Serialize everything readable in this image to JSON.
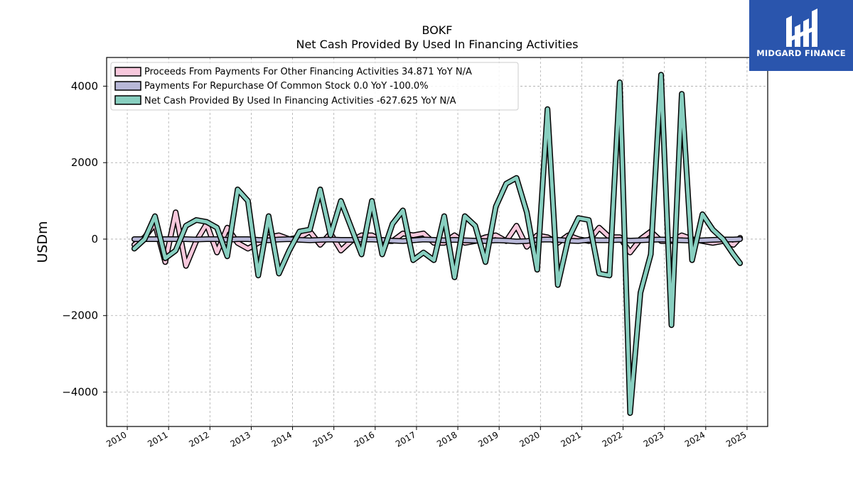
{
  "logo": {
    "text": "MIDGARD FINANCE",
    "bg": "#2a55ad"
  },
  "chart_data": {
    "type": "line",
    "title": "BOKF",
    "subtitle": "Net Cash Provided By Used In Financing Activities",
    "xlabel": "",
    "ylabel": "USDm",
    "xlim": [
      2009.5,
      2025.5
    ],
    "ylim": [
      -4900,
      4750
    ],
    "x_ticks": [
      "2010",
      "2011",
      "2012",
      "2013",
      "2014",
      "2015",
      "2016",
      "2017",
      "2018",
      "2019",
      "2020",
      "2021",
      "2022",
      "2023",
      "2024",
      "2025"
    ],
    "y_ticks": [
      -4000,
      -2000,
      0,
      2000,
      4000
    ],
    "y_tick_labels": [
      "−4000",
      "−2000",
      "0",
      "2000",
      "4000"
    ],
    "grid": true,
    "legend_position": "top-left",
    "series": [
      {
        "name": "Proceeds From Payments For Other Financing Activities  34.871 YoY N/A",
        "color": "#f7c8dc",
        "x": [
          2010.17,
          2010.42,
          2010.67,
          2010.92,
          2011.17,
          2011.42,
          2011.67,
          2011.92,
          2012.17,
          2012.42,
          2012.67,
          2012.92,
          2013.17,
          2013.42,
          2013.67,
          2013.92,
          2014.17,
          2014.42,
          2014.67,
          2014.92,
          2015.17,
          2015.42,
          2015.67,
          2015.92,
          2016.17,
          2016.42,
          2016.67,
          2016.92,
          2017.17,
          2017.42,
          2017.67,
          2017.92,
          2018.17,
          2018.42,
          2018.67,
          2018.92,
          2019.17,
          2019.42,
          2019.67,
          2019.92,
          2020.17,
          2020.42,
          2020.67,
          2020.92,
          2021.17,
          2021.42,
          2021.67,
          2021.92,
          2022.17,
          2022.42,
          2022.67,
          2022.92,
          2023.17,
          2023.42,
          2023.67,
          2023.92,
          2024.17,
          2024.42,
          2024.67,
          2024.83
        ],
        "y": [
          -150,
          50,
          400,
          -600,
          700,
          -700,
          -50,
          400,
          -350,
          300,
          -100,
          -250,
          -100,
          50,
          100,
          0,
          50,
          200,
          -150,
          150,
          -300,
          -50,
          100,
          100,
          -50,
          -50,
          150,
          100,
          150,
          -100,
          -100,
          100,
          -100,
          -50,
          50,
          100,
          -50,
          350,
          -200,
          100,
          50,
          -100,
          100,
          0,
          -50,
          300,
          50,
          50,
          -350,
          0,
          200,
          -50,
          -50,
          100,
          0,
          -50,
          -100,
          -50,
          -150,
          35
        ]
      },
      {
        "name": "Payments For Repurchase Of Common Stock  0.0 YoY -100.0%",
        "color": "#b8b8d8",
        "x": [
          2010.17,
          2010.42,
          2010.67,
          2010.92,
          2011.17,
          2011.42,
          2011.67,
          2011.92,
          2012.17,
          2012.42,
          2012.67,
          2012.92,
          2013.17,
          2013.42,
          2013.67,
          2013.92,
          2014.17,
          2014.42,
          2014.67,
          2014.92,
          2015.17,
          2015.42,
          2015.67,
          2015.92,
          2016.17,
          2016.42,
          2016.67,
          2016.92,
          2017.17,
          2017.42,
          2017.67,
          2017.92,
          2018.17,
          2018.42,
          2018.67,
          2018.92,
          2019.17,
          2019.42,
          2019.67,
          2019.92,
          2020.17,
          2020.42,
          2020.67,
          2020.92,
          2021.17,
          2021.42,
          2021.67,
          2021.92,
          2022.17,
          2022.42,
          2022.67,
          2022.92,
          2023.17,
          2023.42,
          2023.67,
          2023.92,
          2024.17,
          2024.42,
          2024.67,
          2024.83
        ],
        "y": [
          0,
          0,
          0,
          0,
          0,
          0,
          -10,
          0,
          0,
          -20,
          0,
          0,
          -20,
          -30,
          -10,
          0,
          -20,
          -30,
          -20,
          -10,
          -20,
          -20,
          -10,
          -10,
          -20,
          -40,
          -50,
          -30,
          -10,
          -20,
          -30,
          -20,
          -30,
          -40,
          -50,
          -30,
          -40,
          -60,
          -50,
          -20,
          -10,
          -20,
          -40,
          -50,
          -20,
          -30,
          -30,
          -20,
          -40,
          -30,
          -20,
          -10,
          -20,
          -30,
          -40,
          -30,
          -20,
          -10,
          -10,
          0
        ]
      },
      {
        "name": "Net Cash Provided By Used In Financing Activities  -627.625 YoY N/A",
        "color": "#88cfc0",
        "x": [
          2010.17,
          2010.42,
          2010.67,
          2010.92,
          2011.17,
          2011.42,
          2011.67,
          2011.92,
          2012.17,
          2012.42,
          2012.67,
          2012.92,
          2013.17,
          2013.42,
          2013.67,
          2013.92,
          2014.17,
          2014.42,
          2014.67,
          2014.92,
          2015.17,
          2015.42,
          2015.67,
          2015.92,
          2016.17,
          2016.42,
          2016.67,
          2016.92,
          2017.17,
          2017.42,
          2017.67,
          2017.92,
          2018.17,
          2018.42,
          2018.67,
          2018.92,
          2019.17,
          2019.42,
          2019.67,
          2019.92,
          2020.17,
          2020.42,
          2020.67,
          2020.92,
          2021.17,
          2021.42,
          2021.67,
          2021.92,
          2022.17,
          2022.42,
          2022.67,
          2022.92,
          2023.17,
          2023.42,
          2023.67,
          2023.92,
          2024.17,
          2024.42,
          2024.67,
          2024.83
        ],
        "y": [
          -250,
          0,
          600,
          -500,
          -300,
          350,
          500,
          450,
          300,
          -450,
          1300,
          1000,
          -950,
          600,
          -900,
          -300,
          200,
          250,
          1300,
          100,
          1000,
          300,
          -400,
          1000,
          -400,
          400,
          750,
          -550,
          -350,
          -550,
          600,
          -1000,
          600,
          350,
          -600,
          850,
          1450,
          1600,
          700,
          -800,
          3400,
          -1200,
          0,
          550,
          500,
          -900,
          -950,
          4100,
          -4550,
          -1400,
          -400,
          4300,
          -2250,
          3800,
          -550,
          650,
          250,
          0,
          -400,
          -630
        ]
      }
    ]
  }
}
